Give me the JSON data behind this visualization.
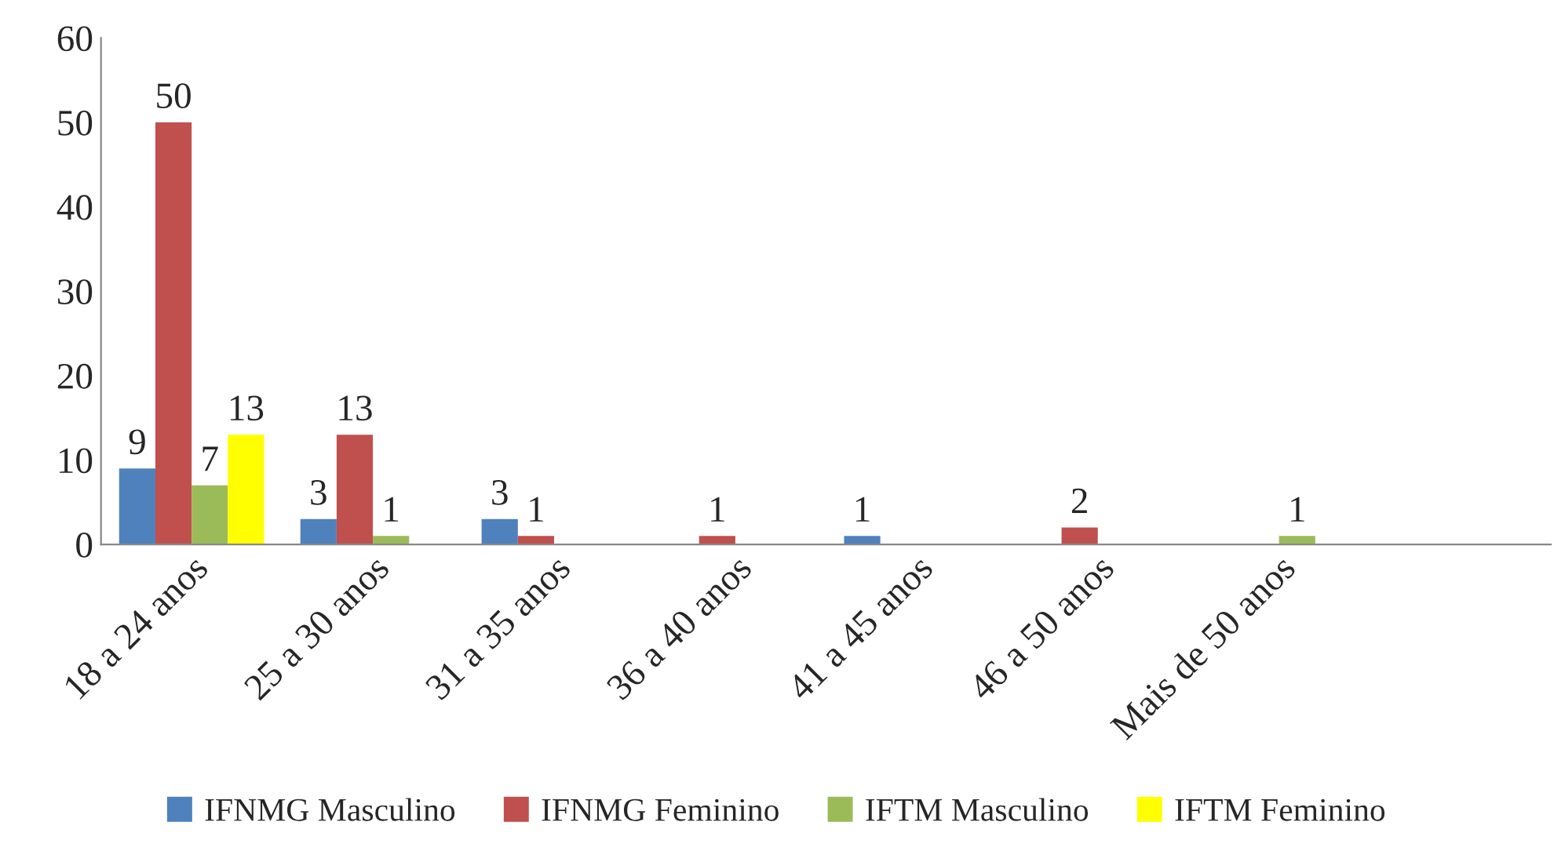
{
  "chart_data": {
    "type": "bar",
    "categories": [
      "18 a 24 anos",
      "25 a 30 anos",
      "31 a 35 anos",
      "36 a 40 anos",
      "41 a 45 anos",
      "46 a 50 anos",
      "Mais de 50 anos",
      null
    ],
    "series": [
      {
        "name": "IFNMG Masculino",
        "color": "#4f81bd",
        "values": [
          9,
          3,
          3,
          null,
          1,
          null,
          null,
          null
        ],
        "value_labels": [
          "9",
          "3",
          "3",
          null,
          "1",
          null,
          null,
          null
        ]
      },
      {
        "name": "IFNMG Feminino",
        "color": "#c0504d",
        "values": [
          50,
          13,
          1,
          1,
          null,
          2,
          null,
          null
        ],
        "value_labels": [
          "50",
          "13",
          "1",
          "1",
          null,
          "2",
          null,
          null
        ]
      },
      {
        "name": "IFTM Masculino",
        "color": "#9bbb59",
        "values": [
          7,
          1,
          null,
          null,
          null,
          null,
          1,
          null
        ],
        "value_labels": [
          "7",
          "1",
          null,
          null,
          null,
          null,
          "1",
          null
        ]
      },
      {
        "name": "IFTM Feminino",
        "color": "#ffff00",
        "values": [
          13,
          null,
          null,
          null,
          null,
          null,
          null,
          null
        ],
        "value_labels": [
          "13",
          null,
          null,
          null,
          null,
          null,
          null,
          null
        ]
      }
    ],
    "ylim": [
      0,
      60
    ],
    "yticks": [
      0,
      10,
      20,
      30,
      40,
      50,
      60
    ],
    "grid": false,
    "legend": "bottom"
  }
}
